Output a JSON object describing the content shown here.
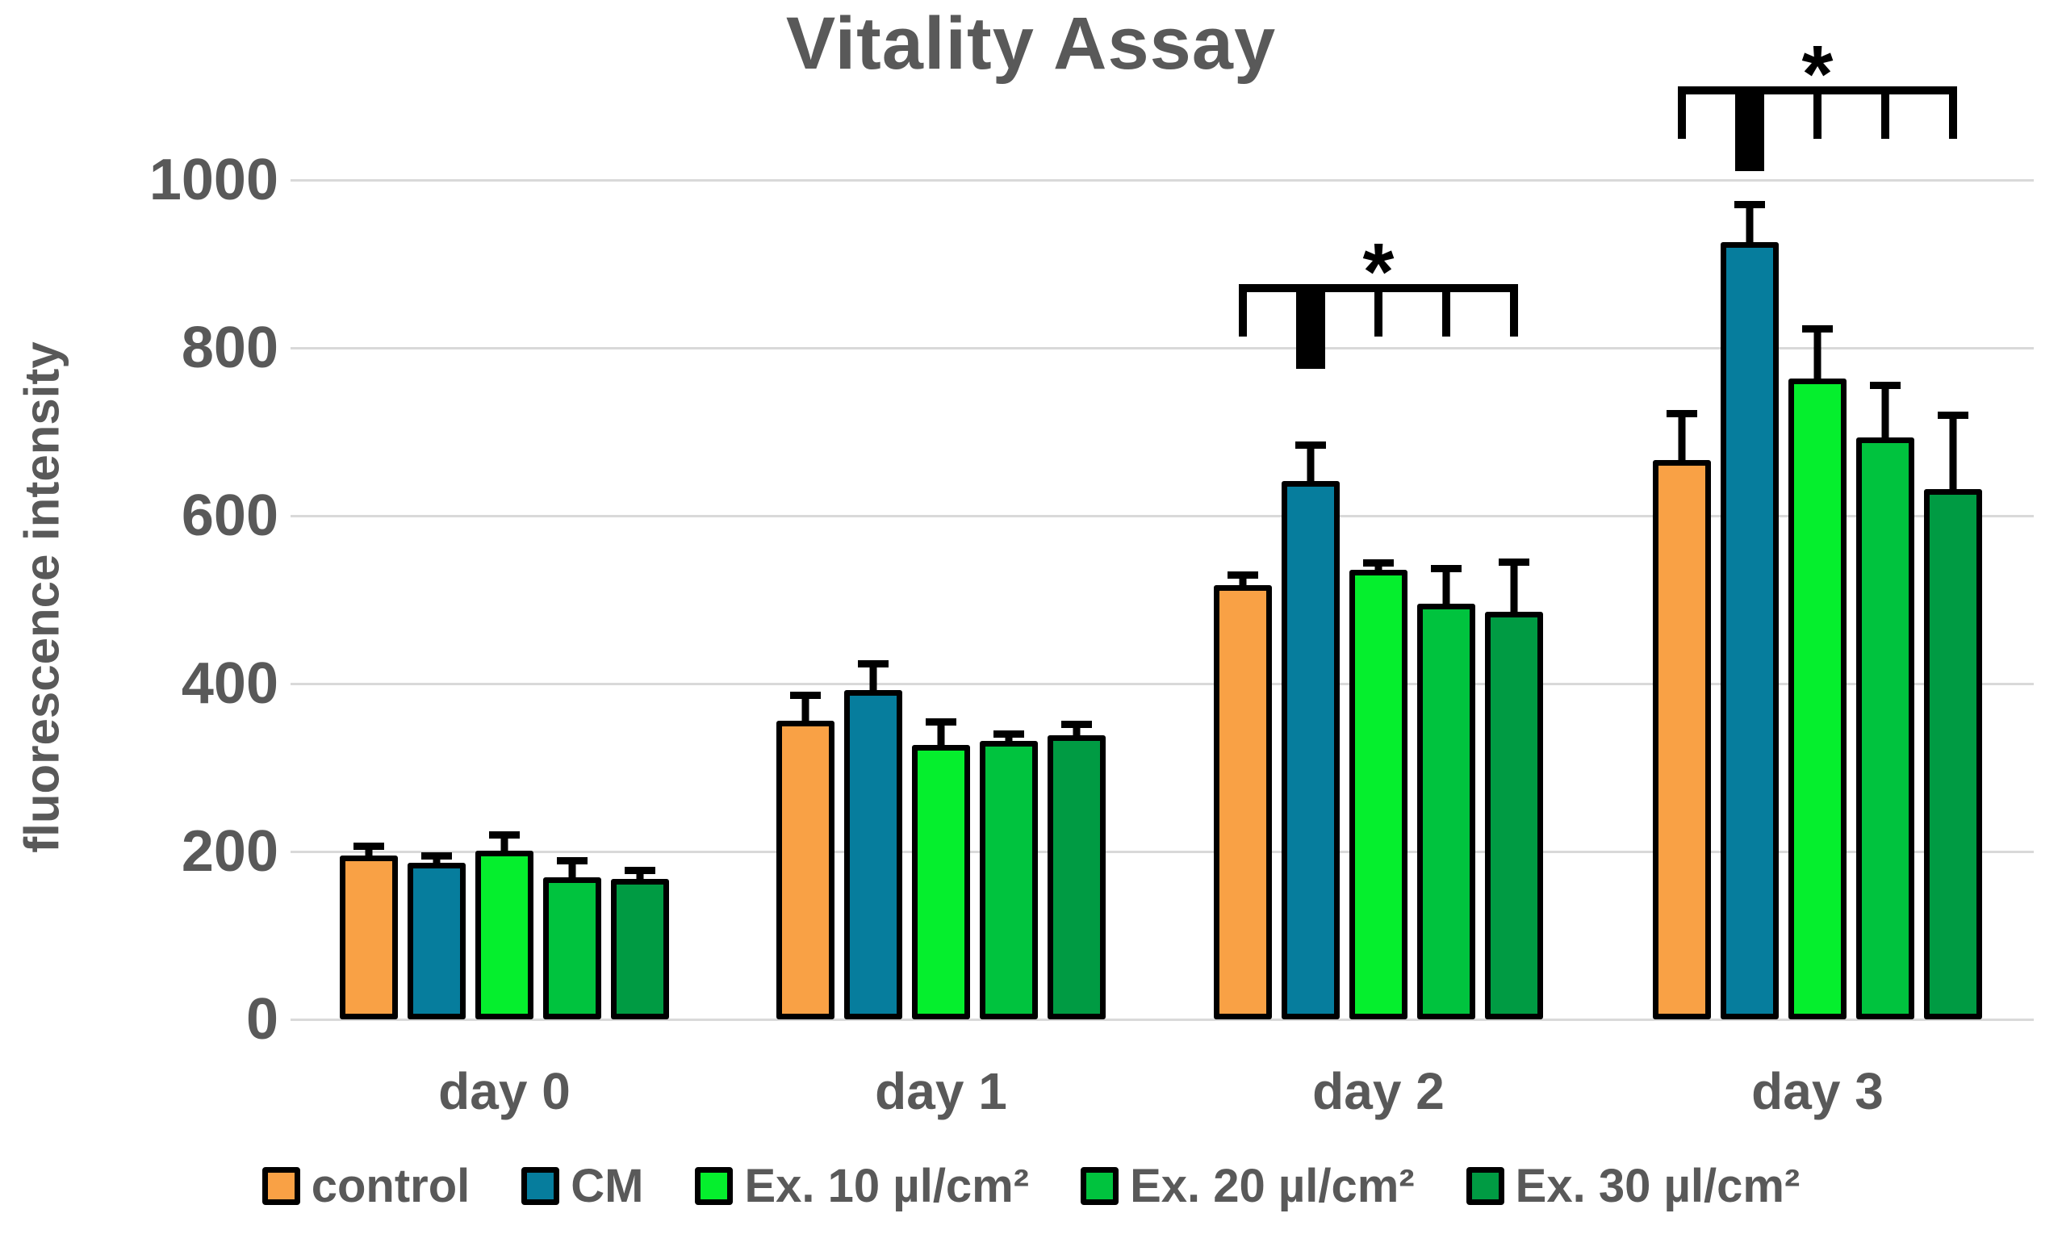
{
  "title": "Vitality Assay",
  "y_axis": {
    "label": "fluorescence intensity",
    "ticks": [
      0,
      200,
      400,
      600,
      800,
      1000
    ],
    "max": 1000
  },
  "x_axis": {
    "categories": [
      "day 0",
      "day 1",
      "day 2",
      "day 3"
    ]
  },
  "legend": {
    "items": [
      "control",
      "CM",
      "Ex. 10 µl/cm²",
      "Ex. 20 µl/cm²",
      "Ex. 30 µl/cm²"
    ]
  },
  "colors": {
    "control": "#F9A145",
    "cm": "#067D9D",
    "ex10": "#05EF2D",
    "ex20": "#00C33E",
    "ex30": "#009B43",
    "text": "#595959",
    "gridline": "#D9D9D9",
    "significance": "#000000"
  },
  "chart_data": {
    "type": "bar",
    "title": "Vitality Assay",
    "xlabel": "",
    "ylabel": "fluorescence intensity",
    "ylim": [
      0,
      1000
    ],
    "grid": true,
    "legend_position": "bottom",
    "categories": [
      "day 0",
      "day 1",
      "day 2",
      "day 3"
    ],
    "series": [
      {
        "name": "control",
        "color": "#F9A145",
        "values": [
          195,
          356,
          517,
          666
        ],
        "errors": [
          16,
          34,
          17,
          60
        ]
      },
      {
        "name": "CM",
        "color": "#067D9D",
        "values": [
          187,
          392,
          641,
          926
        ],
        "errors": [
          12,
          36,
          47,
          49
        ]
      },
      {
        "name": "Ex. 10 µl/cm²",
        "color": "#05EF2D",
        "values": [
          201,
          327,
          536,
          763
        ],
        "errors": [
          23,
          32,
          12,
          64
        ]
      },
      {
        "name": "Ex. 20 µl/cm²",
        "color": "#00C33E",
        "values": [
          169,
          332,
          495,
          693
        ],
        "errors": [
          24,
          12,
          46,
          67
        ]
      },
      {
        "name": "Ex. 30 µl/cm²",
        "color": "#009B43",
        "values": [
          167,
          338,
          486,
          632
        ],
        "errors": [
          15,
          18,
          63,
          92
        ]
      }
    ],
    "significance": [
      {
        "category": "day 2",
        "label": "*",
        "highlight_series": "CM",
        "compares": [
          "control",
          "CM",
          "Ex. 10 µl/cm²",
          "Ex. 20 µl/cm²",
          "Ex. 30 µl/cm²"
        ]
      },
      {
        "category": "day 3",
        "label": "*",
        "highlight_series": "CM",
        "compares": [
          "control",
          "CM",
          "Ex. 10 µl/cm²",
          "Ex. 20 µl/cm²",
          "Ex. 30 µl/cm²"
        ]
      }
    ]
  }
}
